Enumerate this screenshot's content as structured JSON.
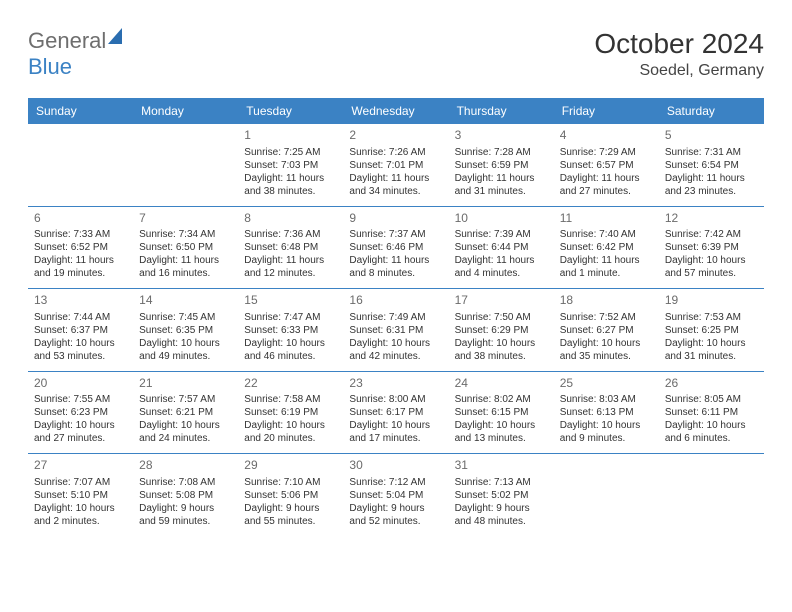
{
  "logo": {
    "general": "General",
    "blue": "Blue"
  },
  "header": {
    "month_title": "October 2024",
    "location": "Soedel, Germany"
  },
  "colors": {
    "header_bg": "#3b82c4",
    "header_text": "#ffffff",
    "row_divider": "#3b82c4",
    "body_text": "#333333",
    "daynum_text": "#6b6b6b",
    "logo_gray": "#6e6e6e",
    "logo_blue": "#3b82c4"
  },
  "weekdays": [
    "Sunday",
    "Monday",
    "Tuesday",
    "Wednesday",
    "Thursday",
    "Friday",
    "Saturday"
  ],
  "weeks": [
    [
      null,
      null,
      {
        "n": "1",
        "sunrise": "Sunrise: 7:25 AM",
        "sunset": "Sunset: 7:03 PM",
        "dl1": "Daylight: 11 hours",
        "dl2": "and 38 minutes."
      },
      {
        "n": "2",
        "sunrise": "Sunrise: 7:26 AM",
        "sunset": "Sunset: 7:01 PM",
        "dl1": "Daylight: 11 hours",
        "dl2": "and 34 minutes."
      },
      {
        "n": "3",
        "sunrise": "Sunrise: 7:28 AM",
        "sunset": "Sunset: 6:59 PM",
        "dl1": "Daylight: 11 hours",
        "dl2": "and 31 minutes."
      },
      {
        "n": "4",
        "sunrise": "Sunrise: 7:29 AM",
        "sunset": "Sunset: 6:57 PM",
        "dl1": "Daylight: 11 hours",
        "dl2": "and 27 minutes."
      },
      {
        "n": "5",
        "sunrise": "Sunrise: 7:31 AM",
        "sunset": "Sunset: 6:54 PM",
        "dl1": "Daylight: 11 hours",
        "dl2": "and 23 minutes."
      }
    ],
    [
      {
        "n": "6",
        "sunrise": "Sunrise: 7:33 AM",
        "sunset": "Sunset: 6:52 PM",
        "dl1": "Daylight: 11 hours",
        "dl2": "and 19 minutes."
      },
      {
        "n": "7",
        "sunrise": "Sunrise: 7:34 AM",
        "sunset": "Sunset: 6:50 PM",
        "dl1": "Daylight: 11 hours",
        "dl2": "and 16 minutes."
      },
      {
        "n": "8",
        "sunrise": "Sunrise: 7:36 AM",
        "sunset": "Sunset: 6:48 PM",
        "dl1": "Daylight: 11 hours",
        "dl2": "and 12 minutes."
      },
      {
        "n": "9",
        "sunrise": "Sunrise: 7:37 AM",
        "sunset": "Sunset: 6:46 PM",
        "dl1": "Daylight: 11 hours",
        "dl2": "and 8 minutes."
      },
      {
        "n": "10",
        "sunrise": "Sunrise: 7:39 AM",
        "sunset": "Sunset: 6:44 PM",
        "dl1": "Daylight: 11 hours",
        "dl2": "and 4 minutes."
      },
      {
        "n": "11",
        "sunrise": "Sunrise: 7:40 AM",
        "sunset": "Sunset: 6:42 PM",
        "dl1": "Daylight: 11 hours",
        "dl2": "and 1 minute."
      },
      {
        "n": "12",
        "sunrise": "Sunrise: 7:42 AM",
        "sunset": "Sunset: 6:39 PM",
        "dl1": "Daylight: 10 hours",
        "dl2": "and 57 minutes."
      }
    ],
    [
      {
        "n": "13",
        "sunrise": "Sunrise: 7:44 AM",
        "sunset": "Sunset: 6:37 PM",
        "dl1": "Daylight: 10 hours",
        "dl2": "and 53 minutes."
      },
      {
        "n": "14",
        "sunrise": "Sunrise: 7:45 AM",
        "sunset": "Sunset: 6:35 PM",
        "dl1": "Daylight: 10 hours",
        "dl2": "and 49 minutes."
      },
      {
        "n": "15",
        "sunrise": "Sunrise: 7:47 AM",
        "sunset": "Sunset: 6:33 PM",
        "dl1": "Daylight: 10 hours",
        "dl2": "and 46 minutes."
      },
      {
        "n": "16",
        "sunrise": "Sunrise: 7:49 AM",
        "sunset": "Sunset: 6:31 PM",
        "dl1": "Daylight: 10 hours",
        "dl2": "and 42 minutes."
      },
      {
        "n": "17",
        "sunrise": "Sunrise: 7:50 AM",
        "sunset": "Sunset: 6:29 PM",
        "dl1": "Daylight: 10 hours",
        "dl2": "and 38 minutes."
      },
      {
        "n": "18",
        "sunrise": "Sunrise: 7:52 AM",
        "sunset": "Sunset: 6:27 PM",
        "dl1": "Daylight: 10 hours",
        "dl2": "and 35 minutes."
      },
      {
        "n": "19",
        "sunrise": "Sunrise: 7:53 AM",
        "sunset": "Sunset: 6:25 PM",
        "dl1": "Daylight: 10 hours",
        "dl2": "and 31 minutes."
      }
    ],
    [
      {
        "n": "20",
        "sunrise": "Sunrise: 7:55 AM",
        "sunset": "Sunset: 6:23 PM",
        "dl1": "Daylight: 10 hours",
        "dl2": "and 27 minutes."
      },
      {
        "n": "21",
        "sunrise": "Sunrise: 7:57 AM",
        "sunset": "Sunset: 6:21 PM",
        "dl1": "Daylight: 10 hours",
        "dl2": "and 24 minutes."
      },
      {
        "n": "22",
        "sunrise": "Sunrise: 7:58 AM",
        "sunset": "Sunset: 6:19 PM",
        "dl1": "Daylight: 10 hours",
        "dl2": "and 20 minutes."
      },
      {
        "n": "23",
        "sunrise": "Sunrise: 8:00 AM",
        "sunset": "Sunset: 6:17 PM",
        "dl1": "Daylight: 10 hours",
        "dl2": "and 17 minutes."
      },
      {
        "n": "24",
        "sunrise": "Sunrise: 8:02 AM",
        "sunset": "Sunset: 6:15 PM",
        "dl1": "Daylight: 10 hours",
        "dl2": "and 13 minutes."
      },
      {
        "n": "25",
        "sunrise": "Sunrise: 8:03 AM",
        "sunset": "Sunset: 6:13 PM",
        "dl1": "Daylight: 10 hours",
        "dl2": "and 9 minutes."
      },
      {
        "n": "26",
        "sunrise": "Sunrise: 8:05 AM",
        "sunset": "Sunset: 6:11 PM",
        "dl1": "Daylight: 10 hours",
        "dl2": "and 6 minutes."
      }
    ],
    [
      {
        "n": "27",
        "sunrise": "Sunrise: 7:07 AM",
        "sunset": "Sunset: 5:10 PM",
        "dl1": "Daylight: 10 hours",
        "dl2": "and 2 minutes."
      },
      {
        "n": "28",
        "sunrise": "Sunrise: 7:08 AM",
        "sunset": "Sunset: 5:08 PM",
        "dl1": "Daylight: 9 hours",
        "dl2": "and 59 minutes."
      },
      {
        "n": "29",
        "sunrise": "Sunrise: 7:10 AM",
        "sunset": "Sunset: 5:06 PM",
        "dl1": "Daylight: 9 hours",
        "dl2": "and 55 minutes."
      },
      {
        "n": "30",
        "sunrise": "Sunrise: 7:12 AM",
        "sunset": "Sunset: 5:04 PM",
        "dl1": "Daylight: 9 hours",
        "dl2": "and 52 minutes."
      },
      {
        "n": "31",
        "sunrise": "Sunrise: 7:13 AM",
        "sunset": "Sunset: 5:02 PM",
        "dl1": "Daylight: 9 hours",
        "dl2": "and 48 minutes."
      },
      null,
      null
    ]
  ]
}
